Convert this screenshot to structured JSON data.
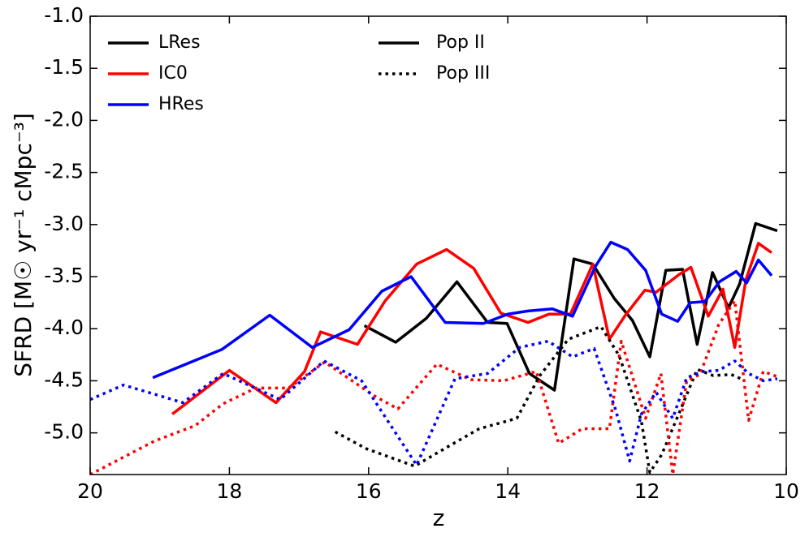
{
  "chart_data": {
    "type": "line",
    "xlabel": "z",
    "ylabel": "SFRD [M☉ yr⁻¹ cMpc⁻³]",
    "xlim": [
      20,
      10
    ],
    "ylim": [
      -5.4,
      -1.0
    ],
    "xticks": [
      20,
      18,
      16,
      14,
      12,
      10
    ],
    "yticks": [
      {
        "value": -1.0,
        "label": "-1.0"
      },
      -1.5,
      {
        "value": -2.0,
        "label": "-2.0"
      },
      -2.5,
      {
        "value": -3.0,
        "label": "-3.0"
      },
      -3.5,
      {
        "value": -4.0,
        "label": "-4.0"
      },
      -4.5,
      {
        "value": -5.0,
        "label": "-5.0"
      }
    ],
    "legend": "upper left",
    "series": [
      {
        "name": "LRes",
        "population": "Pop II",
        "color": "#000000",
        "linestyle": "solid",
        "x": [
          16.06,
          15.61,
          15.17,
          14.73,
          14.29,
          14.01,
          13.69,
          13.33,
          13.05,
          12.78,
          12.47,
          12.21,
          11.96,
          11.73,
          11.49,
          11.28,
          11.06,
          10.83,
          10.67,
          10.44,
          10.13
        ],
        "values": [
          -3.97,
          -4.13,
          -3.9,
          -3.55,
          -3.94,
          -3.95,
          -4.43,
          -4.59,
          -3.33,
          -3.38,
          -3.71,
          -3.92,
          -4.27,
          -3.44,
          -3.43,
          -4.15,
          -3.46,
          -3.8,
          -3.57,
          -2.99,
          -3.06
        ]
      },
      {
        "name": "IC0",
        "population": "Pop II",
        "color": "#ff0000",
        "linestyle": "solid",
        "x": [
          18.82,
          18.0,
          17.33,
          16.92,
          16.69,
          16.16,
          15.76,
          15.31,
          14.88,
          14.49,
          14.1,
          13.71,
          13.41,
          13.1,
          12.78,
          12.54,
          12.31,
          12.03,
          11.87,
          11.54,
          11.37,
          11.12,
          10.91,
          10.74,
          10.58,
          10.4,
          10.21
        ],
        "values": [
          -4.82,
          -4.4,
          -4.71,
          -4.41,
          -4.03,
          -4.15,
          -3.73,
          -3.38,
          -3.24,
          -3.42,
          -3.85,
          -3.94,
          -3.86,
          -3.86,
          -3.38,
          -4.1,
          -3.87,
          -3.63,
          -3.65,
          -3.48,
          -3.41,
          -3.88,
          -3.62,
          -4.18,
          -3.53,
          -3.18,
          -3.27
        ]
      },
      {
        "name": "HRes",
        "population": "Pop II",
        "color": "#0000ff",
        "linestyle": "solid",
        "x": [
          19.1,
          18.11,
          17.42,
          16.81,
          16.28,
          15.81,
          15.39,
          14.9,
          14.35,
          14.0,
          13.71,
          13.36,
          13.07,
          12.74,
          12.52,
          12.28,
          12.02,
          11.79,
          11.56,
          11.38,
          11.17,
          10.96,
          10.72,
          10.57,
          10.4,
          10.21
        ],
        "values": [
          -4.47,
          -4.2,
          -3.87,
          -4.18,
          -4.01,
          -3.64,
          -3.5,
          -3.94,
          -3.95,
          -3.86,
          -3.83,
          -3.81,
          -3.88,
          -3.4,
          -3.17,
          -3.24,
          -3.44,
          -3.86,
          -3.93,
          -3.75,
          -3.74,
          -3.55,
          -3.45,
          -3.56,
          -3.34,
          -3.49
        ]
      },
      {
        "name": "LRes",
        "population": "Pop III",
        "color": "#000000",
        "linestyle": "dotted",
        "x": [
          16.48,
          16.04,
          15.34,
          14.88,
          14.41,
          13.87,
          13.54,
          13.13,
          12.66,
          12.4,
          12.08,
          11.96,
          11.79,
          11.52,
          11.28,
          11.05,
          10.79,
          10.62
        ],
        "values": [
          -4.99,
          -5.15,
          -5.32,
          -5.14,
          -4.96,
          -4.86,
          -4.45,
          -4.1,
          -3.98,
          -4.26,
          -4.89,
          -5.38,
          -5.21,
          -4.78,
          -4.39,
          -4.45,
          -4.44,
          -4.49
        ]
      },
      {
        "name": "IC0",
        "population": "Pop III",
        "color": "#ff0000",
        "linestyle": "dotted",
        "x": [
          20.0,
          19.08,
          18.49,
          18.09,
          17.62,
          17.15,
          16.63,
          15.93,
          15.58,
          15.02,
          14.53,
          14.06,
          13.59,
          13.27,
          12.93,
          12.54,
          12.37,
          12.02,
          11.8,
          11.63,
          11.43,
          11.24,
          10.97,
          10.74,
          10.54,
          10.33,
          10.13
        ],
        "values": [
          -5.4,
          -5.08,
          -4.93,
          -4.72,
          -4.57,
          -4.57,
          -4.32,
          -4.64,
          -4.77,
          -4.34,
          -4.49,
          -4.5,
          -4.41,
          -5.1,
          -4.96,
          -4.96,
          -4.12,
          -4.86,
          -4.43,
          -5.4,
          -4.5,
          -4.44,
          -3.96,
          -3.73,
          -4.88,
          -4.41,
          -4.46
        ]
      },
      {
        "name": "HRes",
        "population": "Pop III",
        "color": "#0000ff",
        "linestyle": "dotted",
        "x": [
          20.0,
          19.52,
          18.67,
          18.09,
          17.27,
          16.64,
          16.1,
          15.31,
          14.76,
          14.29,
          13.83,
          13.42,
          13.07,
          12.76,
          12.45,
          12.25,
          12.08,
          11.87,
          11.63,
          11.43,
          11.19,
          10.97,
          10.74,
          10.54,
          10.33,
          10.13
        ],
        "values": [
          -4.68,
          -4.54,
          -4.71,
          -4.43,
          -4.68,
          -4.31,
          -4.5,
          -5.31,
          -4.48,
          -4.43,
          -4.18,
          -4.12,
          -4.27,
          -4.19,
          -4.78,
          -5.27,
          -4.82,
          -4.61,
          -4.86,
          -4.47,
          -4.41,
          -4.4,
          -4.31,
          -4.43,
          -4.5,
          -4.48
        ]
      }
    ]
  }
}
